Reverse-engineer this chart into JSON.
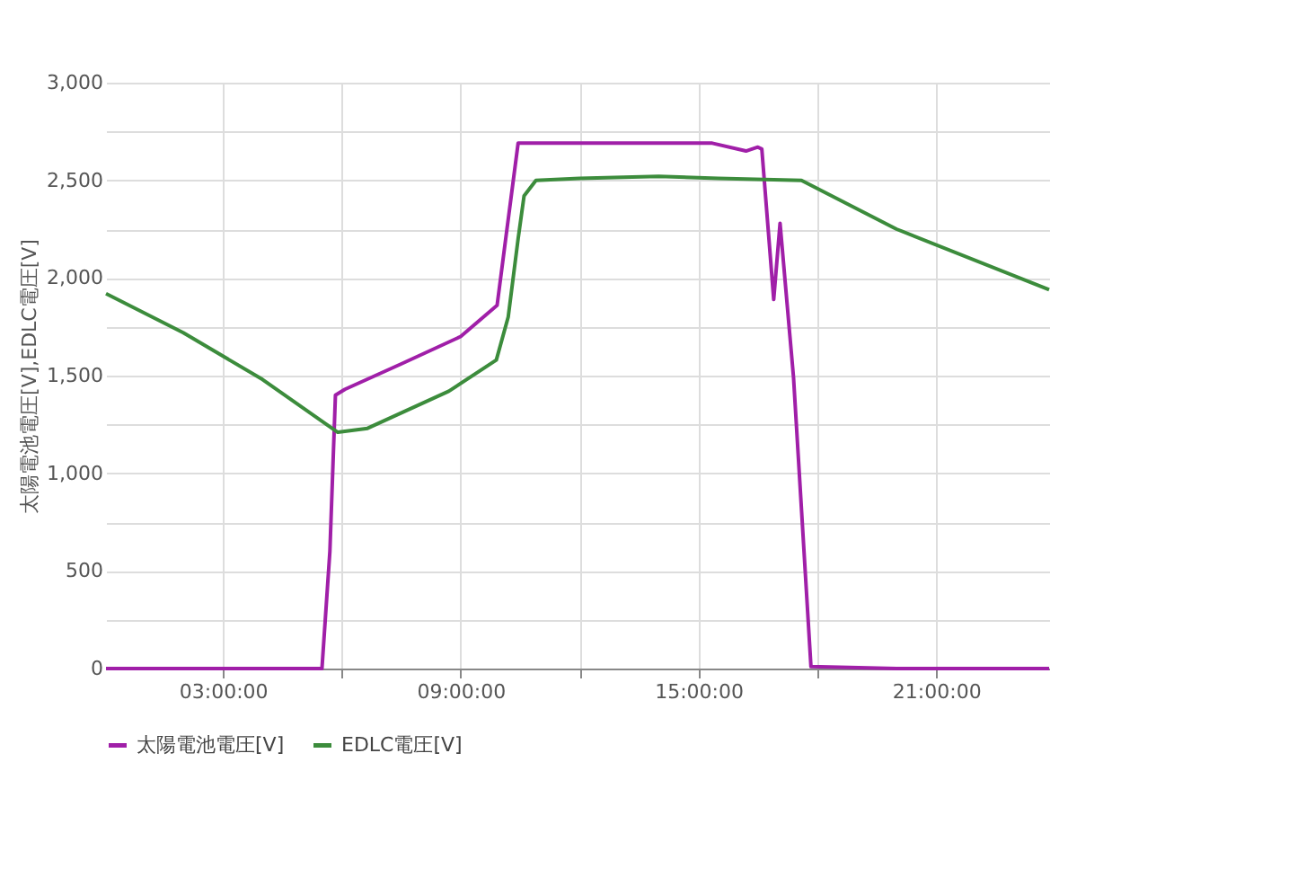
{
  "chart_data": {
    "type": "line",
    "ylabel": "太陽電池電圧[V],EDLC電圧[V]",
    "xlim": [
      0.05,
      23.85
    ],
    "ylim": [
      0,
      3000
    ],
    "xticks": [
      {
        "value": 3,
        "label": "03:00:00"
      },
      {
        "value": 6,
        "label": null
      },
      {
        "value": 9,
        "label": "09:00:00"
      },
      {
        "value": 12,
        "label": null
      },
      {
        "value": 15,
        "label": "15:00:00"
      },
      {
        "value": 18,
        "label": null
      },
      {
        "value": 21,
        "label": "21:00:00"
      }
    ],
    "yticks": [
      0,
      {
        "value": 250,
        "label": null
      },
      500,
      {
        "value": 750,
        "label": null
      },
      {
        "value": 1000,
        "label": "1,000"
      },
      {
        "value": 1250,
        "label": null
      },
      {
        "value": 1500,
        "label": "1,500"
      },
      {
        "value": 1750,
        "label": null
      },
      {
        "value": 2000,
        "label": "2,000"
      },
      {
        "value": 2250,
        "label": null
      },
      {
        "value": 2500,
        "label": "2,500"
      },
      {
        "value": 2750,
        "label": null
      },
      {
        "value": 3000,
        "label": "3,000"
      }
    ],
    "grid": true,
    "legend": "bottom",
    "marker": "none",
    "line_style": "solid",
    "series": [
      {
        "name": "太陽電池電圧[V]",
        "color": "#a01fa8",
        "x": [
          0.05,
          5.5,
          5.7,
          5.84,
          6.08,
          7.5,
          9.0,
          9.92,
          10.2,
          10.45,
          12,
          15.35,
          16.2,
          16.5,
          16.6,
          16.9,
          17.06,
          17.4,
          17.84,
          20,
          23.85
        ],
        "values": [
          0,
          0,
          600,
          1400,
          1430,
          1560,
          1700,
          1860,
          2300,
          2690,
          2690,
          2690,
          2650,
          2670,
          2660,
          1890,
          2280,
          1490,
          10,
          0,
          0
        ]
      },
      {
        "name": "EDLC電圧[V]",
        "color": "#3c8c3c",
        "x": [
          0.05,
          2,
          4,
          5.9,
          6.65,
          8.7,
          9.9,
          10.2,
          10.45,
          10.6,
          10.9,
          12,
          14,
          15.5,
          17.6,
          20,
          23.85
        ],
        "values": [
          1920,
          1720,
          1480,
          1210,
          1230,
          1420,
          1580,
          1800,
          2200,
          2420,
          2500,
          2510,
          2520,
          2510,
          2500,
          2250,
          1940
        ]
      }
    ]
  }
}
